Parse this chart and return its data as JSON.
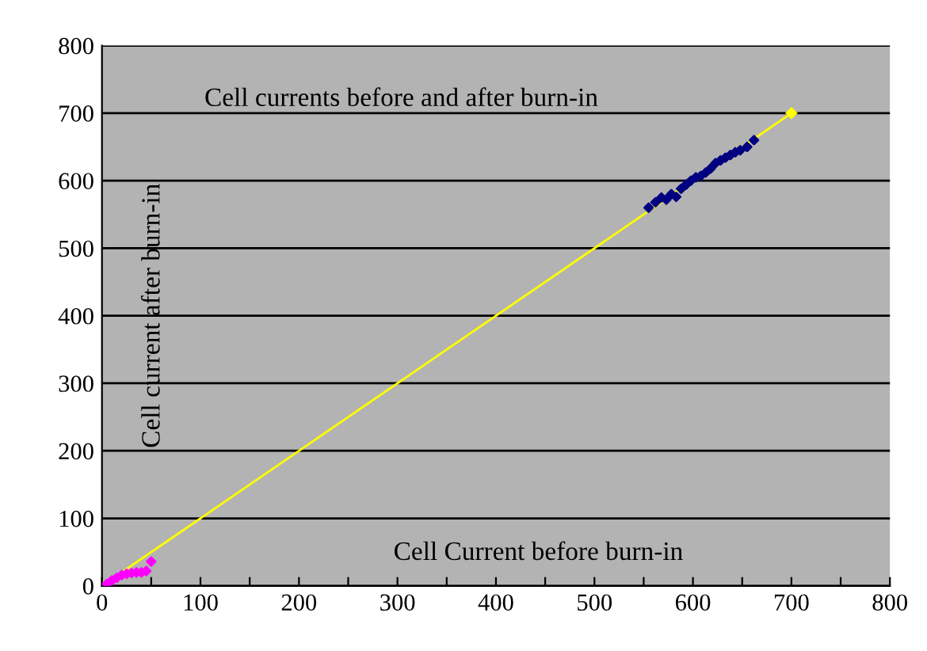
{
  "chart_data": {
    "type": "scatter",
    "title": "Cell currents before and after burn-in",
    "xlabel": "Cell Current before burn-in",
    "ylabel": "Cell current after burn-in",
    "xlim": [
      0,
      800
    ],
    "ylim": [
      0,
      800
    ],
    "xticks": [
      0,
      {
        "value": 50,
        "label": null
      },
      100,
      {
        "value": 150,
        "label": null
      },
      200,
      {
        "value": 250,
        "label": null
      },
      300,
      {
        "value": 350,
        "label": null
      },
      400,
      {
        "value": 450,
        "label": null
      },
      500,
      {
        "value": 550,
        "label": null
      },
      600,
      {
        "value": 650,
        "label": null
      },
      700,
      {
        "value": 750,
        "label": null
      },
      800
    ],
    "yticks": [
      0,
      100,
      200,
      300,
      400,
      500,
      600,
      700,
      800
    ],
    "grid": "y",
    "marker": "diamond",
    "series": [
      {
        "color": "#ff00ff",
        "x": [
          5,
          10,
          15,
          20,
          25,
          30,
          35,
          40,
          45,
          50
        ],
        "values": [
          3,
          8,
          12,
          16,
          18,
          19,
          20,
          20,
          22,
          36
        ]
      },
      {
        "color": "#000080",
        "x": [
          555,
          562,
          568,
          573,
          578,
          583,
          588,
          593,
          598,
          603,
          608,
          613,
          618,
          623,
          628,
          633,
          638,
          643,
          648,
          655,
          662
        ],
        "values": [
          560,
          568,
          575,
          572,
          580,
          576,
          588,
          594,
          600,
          605,
          607,
          612,
          618,
          626,
          630,
          634,
          638,
          642,
          645,
          650,
          660
        ]
      },
      {
        "type": "line",
        "color": "#ffff00",
        "x": [
          0,
          700
        ],
        "values": [
          0,
          700
        ]
      }
    ]
  }
}
